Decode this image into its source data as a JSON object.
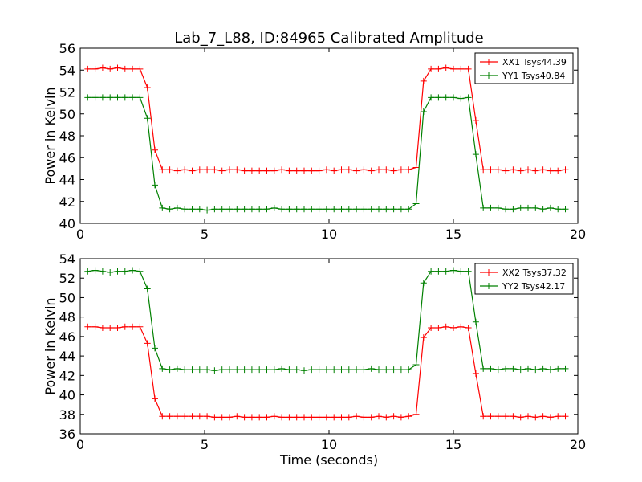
{
  "figure_title": "Lab_7_L88, ID:84965 Calibrated Amplitude",
  "colors": {
    "xx": "#ff0000",
    "yy": "#008000"
  },
  "chart_data": [
    {
      "type": "line",
      "title": "Lab_7_L88, ID:84965 Calibrated Amplitude",
      "xlabel": "",
      "ylabel": "Power in Kelvin",
      "xlim": [
        0,
        20
      ],
      "ylim": [
        40,
        56
      ],
      "xticks": [
        "0",
        "5",
        "10",
        "15",
        "20"
      ],
      "xtick_values": [
        0,
        5,
        10,
        15,
        20
      ],
      "yticks": [
        "40",
        "42",
        "44",
        "46",
        "48",
        "50",
        "52",
        "54",
        "56"
      ],
      "ytick_values": [
        40,
        42,
        44,
        46,
        48,
        50,
        52,
        54,
        56
      ],
      "legend_position": "top-right",
      "series": [
        {
          "name": "XX1 Tsys44.39",
          "color": "#ff0000",
          "x": [
            0.3,
            0.6,
            0.9,
            1.2,
            1.5,
            1.8,
            2.1,
            2.4,
            2.7,
            3.0,
            3.3,
            3.6,
            3.9,
            4.2,
            4.5,
            4.8,
            5.1,
            5.4,
            5.7,
            6.0,
            6.3,
            6.6,
            6.9,
            7.2,
            7.5,
            7.8,
            8.1,
            8.4,
            8.7,
            9.0,
            9.3,
            9.6,
            9.9,
            10.2,
            10.5,
            10.8,
            11.1,
            11.4,
            11.7,
            12.0,
            12.3,
            12.6,
            12.9,
            13.2,
            13.5,
            13.8,
            14.1,
            14.4,
            14.7,
            15.0,
            15.3,
            15.6,
            15.9,
            16.2,
            16.5,
            16.8,
            17.1,
            17.4,
            17.7,
            18.0,
            18.3,
            18.6,
            18.9,
            19.2,
            19.5
          ],
          "values": [
            54.1,
            54.1,
            54.2,
            54.1,
            54.2,
            54.1,
            54.1,
            54.1,
            52.4,
            46.7,
            44.9,
            44.9,
            44.8,
            44.9,
            44.8,
            44.9,
            44.9,
            44.9,
            44.8,
            44.9,
            44.9,
            44.8,
            44.8,
            44.8,
            44.8,
            44.8,
            44.9,
            44.8,
            44.8,
            44.8,
            44.8,
            44.8,
            44.9,
            44.8,
            44.9,
            44.9,
            44.8,
            44.9,
            44.8,
            44.9,
            44.9,
            44.8,
            44.9,
            44.9,
            45.1,
            53.0,
            54.1,
            54.1,
            54.2,
            54.1,
            54.1,
            54.1,
            49.4,
            44.9,
            44.9,
            44.9,
            44.8,
            44.9,
            44.8,
            44.9,
            44.8,
            44.9,
            44.8,
            44.8,
            44.9
          ]
        },
        {
          "name": "YY1 Tsys40.84",
          "color": "#008000",
          "x": [
            0.3,
            0.6,
            0.9,
            1.2,
            1.5,
            1.8,
            2.1,
            2.4,
            2.7,
            3.0,
            3.3,
            3.6,
            3.9,
            4.2,
            4.5,
            4.8,
            5.1,
            5.4,
            5.7,
            6.0,
            6.3,
            6.6,
            6.9,
            7.2,
            7.5,
            7.8,
            8.1,
            8.4,
            8.7,
            9.0,
            9.3,
            9.6,
            9.9,
            10.2,
            10.5,
            10.8,
            11.1,
            11.4,
            11.7,
            12.0,
            12.3,
            12.6,
            12.9,
            13.2,
            13.5,
            13.8,
            14.1,
            14.4,
            14.7,
            15.0,
            15.3,
            15.6,
            15.9,
            16.2,
            16.5,
            16.8,
            17.1,
            17.4,
            17.7,
            18.0,
            18.3,
            18.6,
            18.9,
            19.2,
            19.5
          ],
          "values": [
            51.5,
            51.5,
            51.5,
            51.5,
            51.5,
            51.5,
            51.5,
            51.5,
            49.6,
            43.5,
            41.4,
            41.3,
            41.4,
            41.3,
            41.3,
            41.3,
            41.2,
            41.3,
            41.3,
            41.3,
            41.3,
            41.3,
            41.3,
            41.3,
            41.3,
            41.4,
            41.3,
            41.3,
            41.3,
            41.3,
            41.3,
            41.3,
            41.3,
            41.3,
            41.3,
            41.3,
            41.3,
            41.3,
            41.3,
            41.3,
            41.3,
            41.3,
            41.3,
            41.3,
            41.8,
            50.2,
            51.5,
            51.5,
            51.5,
            51.5,
            51.4,
            51.5,
            46.3,
            41.4,
            41.4,
            41.4,
            41.3,
            41.3,
            41.4,
            41.4,
            41.4,
            41.3,
            41.4,
            41.3,
            41.3
          ]
        }
      ]
    },
    {
      "type": "line",
      "title": "",
      "xlabel": "Time (seconds)",
      "ylabel": "Power in Kelvin",
      "xlim": [
        0,
        20
      ],
      "ylim": [
        36,
        54
      ],
      "xticks": [
        "0",
        "5",
        "10",
        "15",
        "20"
      ],
      "xtick_values": [
        0,
        5,
        10,
        15,
        20
      ],
      "yticks": [
        "36",
        "38",
        "40",
        "42",
        "44",
        "46",
        "48",
        "50",
        "52",
        "54"
      ],
      "ytick_values": [
        36,
        38,
        40,
        42,
        44,
        46,
        48,
        50,
        52,
        54
      ],
      "legend_position": "top-right",
      "series": [
        {
          "name": "XX2 Tsys37.32",
          "color": "#ff0000",
          "x": [
            0.3,
            0.6,
            0.9,
            1.2,
            1.5,
            1.8,
            2.1,
            2.4,
            2.7,
            3.0,
            3.3,
            3.6,
            3.9,
            4.2,
            4.5,
            4.8,
            5.1,
            5.4,
            5.7,
            6.0,
            6.3,
            6.6,
            6.9,
            7.2,
            7.5,
            7.8,
            8.1,
            8.4,
            8.7,
            9.0,
            9.3,
            9.6,
            9.9,
            10.2,
            10.5,
            10.8,
            11.1,
            11.4,
            11.7,
            12.0,
            12.3,
            12.6,
            12.9,
            13.2,
            13.5,
            13.8,
            14.1,
            14.4,
            14.7,
            15.0,
            15.3,
            15.6,
            15.9,
            16.2,
            16.5,
            16.8,
            17.1,
            17.4,
            17.7,
            18.0,
            18.3,
            18.6,
            18.9,
            19.2,
            19.5
          ],
          "values": [
            47.0,
            47.0,
            46.9,
            46.9,
            46.9,
            47.0,
            47.0,
            47.0,
            45.3,
            39.6,
            37.8,
            37.8,
            37.8,
            37.8,
            37.8,
            37.8,
            37.8,
            37.7,
            37.7,
            37.7,
            37.8,
            37.7,
            37.7,
            37.7,
            37.7,
            37.8,
            37.7,
            37.7,
            37.7,
            37.7,
            37.7,
            37.7,
            37.7,
            37.7,
            37.7,
            37.7,
            37.8,
            37.7,
            37.7,
            37.8,
            37.7,
            37.8,
            37.7,
            37.8,
            38.0,
            45.9,
            46.9,
            46.9,
            47.0,
            46.9,
            47.0,
            46.9,
            42.2,
            37.8,
            37.8,
            37.8,
            37.8,
            37.8,
            37.7,
            37.8,
            37.7,
            37.8,
            37.7,
            37.8,
            37.8
          ]
        },
        {
          "name": "YY2 Tsys42.17",
          "color": "#008000",
          "x": [
            0.3,
            0.6,
            0.9,
            1.2,
            1.5,
            1.8,
            2.1,
            2.4,
            2.7,
            3.0,
            3.3,
            3.6,
            3.9,
            4.2,
            4.5,
            4.8,
            5.1,
            5.4,
            5.7,
            6.0,
            6.3,
            6.6,
            6.9,
            7.2,
            7.5,
            7.8,
            8.1,
            8.4,
            8.7,
            9.0,
            9.3,
            9.6,
            9.9,
            10.2,
            10.5,
            10.8,
            11.1,
            11.4,
            11.7,
            12.0,
            12.3,
            12.6,
            12.9,
            13.2,
            13.5,
            13.8,
            14.1,
            14.4,
            14.7,
            15.0,
            15.3,
            15.6,
            15.9,
            16.2,
            16.5,
            16.8,
            17.1,
            17.4,
            17.7,
            18.0,
            18.3,
            18.6,
            18.9,
            19.2,
            19.5
          ],
          "values": [
            52.7,
            52.8,
            52.7,
            52.6,
            52.7,
            52.7,
            52.8,
            52.7,
            50.9,
            44.8,
            42.7,
            42.6,
            42.7,
            42.6,
            42.6,
            42.6,
            42.6,
            42.5,
            42.6,
            42.6,
            42.6,
            42.6,
            42.6,
            42.6,
            42.6,
            42.6,
            42.7,
            42.6,
            42.6,
            42.5,
            42.6,
            42.6,
            42.6,
            42.6,
            42.6,
            42.6,
            42.6,
            42.6,
            42.7,
            42.6,
            42.6,
            42.6,
            42.6,
            42.6,
            43.1,
            51.5,
            52.7,
            52.7,
            52.7,
            52.8,
            52.7,
            52.7,
            47.5,
            42.7,
            42.7,
            42.6,
            42.7,
            42.7,
            42.6,
            42.7,
            42.6,
            42.7,
            42.6,
            42.7,
            42.7
          ]
        }
      ]
    }
  ]
}
